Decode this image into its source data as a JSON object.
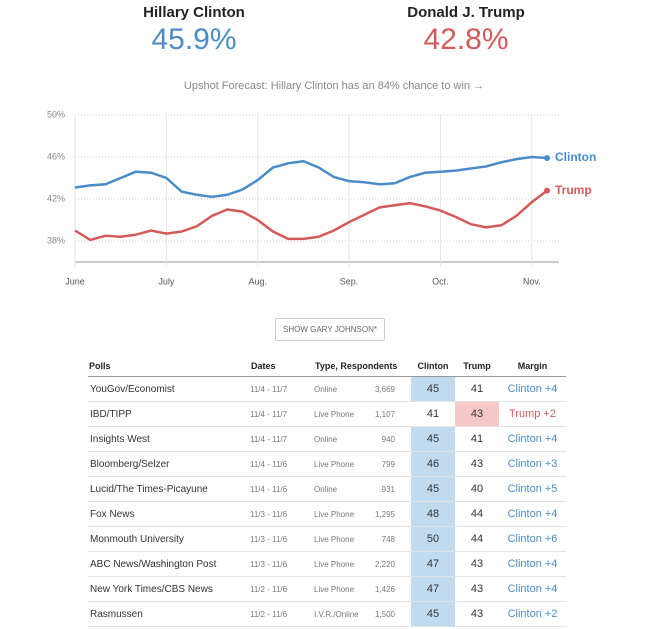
{
  "header": {
    "candidates": [
      {
        "name": "Hillary Clinton",
        "percent": "45.9%",
        "color": "#4a8cc8"
      },
      {
        "name": "Donald J. Trump",
        "percent": "42.8%",
        "color": "#d45a5a"
      }
    ],
    "forecast": "Upshot Forecast: Hillary Clinton has an 84% chance to win →"
  },
  "chart_data": {
    "type": "line",
    "categories": [
      "June",
      null,
      null,
      null,
      null,
      null,
      "July",
      null,
      null,
      null,
      null,
      null,
      "Aug.",
      null,
      null,
      null,
      null,
      null,
      "Sep.",
      null,
      null,
      null,
      null,
      null,
      "Oct.",
      null,
      null,
      null,
      null,
      null,
      "Nov.",
      null
    ],
    "series": [
      {
        "name": "Clinton",
        "color": "#4a8cc8",
        "values": [
          43.1,
          43.3,
          43.4,
          44.0,
          44.6,
          44.5,
          44.0,
          42.7,
          42.4,
          42.2,
          42.4,
          42.9,
          43.8,
          45.0,
          45.4,
          45.6,
          45.0,
          44.1,
          43.7,
          43.6,
          43.4,
          43.5,
          44.1,
          44.5,
          44.6,
          44.7,
          44.9,
          45.1,
          45.5,
          45.8,
          46.0,
          45.9
        ]
      },
      {
        "name": "Trump",
        "color": "#d45a5a",
        "values": [
          39.0,
          38.1,
          38.5,
          38.4,
          38.6,
          39.0,
          38.7,
          38.9,
          39.4,
          40.4,
          41.0,
          40.8,
          40.0,
          38.9,
          38.2,
          38.2,
          38.4,
          39.0,
          39.8,
          40.5,
          41.2,
          41.4,
          41.6,
          41.3,
          40.9,
          40.3,
          39.6,
          39.3,
          39.5,
          40.4,
          41.7,
          42.8
        ]
      }
    ],
    "ylim": [
      36,
      50
    ],
    "yticks": [
      {
        "value": 38,
        "label": "38%"
      },
      {
        "value": 42,
        "label": "42%"
      },
      {
        "value": 46,
        "label": "46%"
      },
      {
        "value": 50,
        "label": "50%"
      }
    ],
    "grid": true
  },
  "button": "SHOW GARY JOHNSON*",
  "table": {
    "columns": [
      "Polls",
      "Dates",
      "Type, Respondents",
      "Clinton",
      "Trump",
      "Margin"
    ],
    "rows": [
      [
        "YouGov/Economist",
        "11/4 - 11/7",
        "Online",
        "3,669",
        45,
        41,
        "Clinton +4"
      ],
      [
        "IBD/TIPP",
        "11/4 - 11/7",
        "Live Phone",
        "1,107",
        41,
        43,
        "Trump +2"
      ],
      [
        "Insights West",
        "11/4 - 11/7",
        "Online",
        "940",
        45,
        41,
        "Clinton +4"
      ],
      [
        "Bloomberg/Selzer",
        "11/4 - 11/6",
        "Live Phone",
        "799",
        46,
        43,
        "Clinton +3"
      ],
      [
        "Lucid/The Times-Picayune",
        "11/4 - 11/6",
        "Online",
        "931",
        45,
        40,
        "Clinton +5"
      ],
      [
        "Fox News",
        "11/3 - 11/6",
        "Live Phone",
        "1,295",
        48,
        44,
        "Clinton +4"
      ],
      [
        "Monmouth University",
        "11/3 - 11/6",
        "Live Phone",
        "748",
        50,
        44,
        "Clinton +6"
      ],
      [
        "ABC News/Washington Post",
        "11/3 - 11/6",
        "Live Phone",
        "2,220",
        47,
        43,
        "Clinton +4"
      ],
      [
        "New York Times/CBS News",
        "11/2 - 11/6",
        "Live Phone",
        "1,426",
        47,
        43,
        "Clinton +4"
      ],
      [
        "Rasmussen",
        "11/2 - 11/6",
        "I.V.R./Online",
        "1,500",
        45,
        43,
        "Clinton +2"
      ]
    ]
  }
}
